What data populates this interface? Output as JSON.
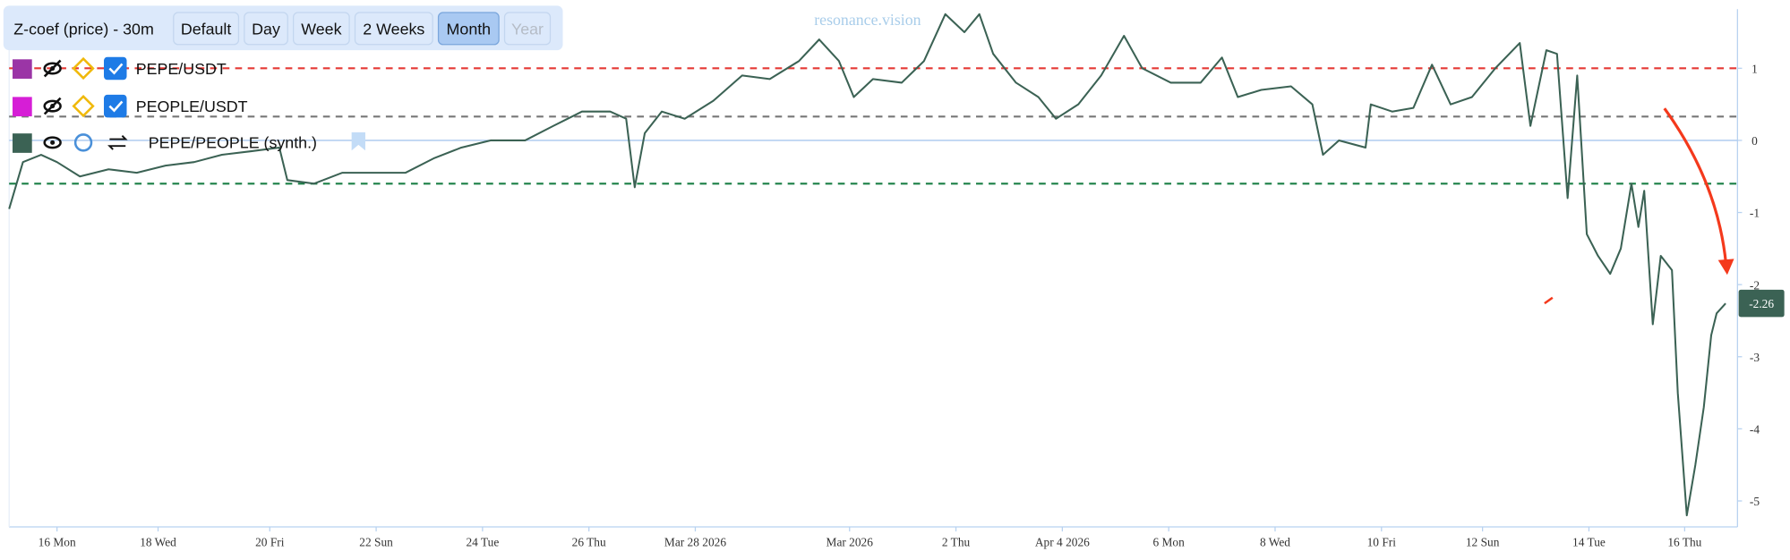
{
  "toolbar": {
    "title": "Z-coef (price) - 30m",
    "buttons": [
      "Default",
      "Day",
      "Week",
      "2 Weeks",
      "Month",
      "Year"
    ],
    "active_button": 4,
    "disabled_button": 5
  },
  "legend_extra": [
    {
      "name": "PEPE/USDT",
      "color": "#9b35a6"
    },
    {
      "name": "PEOPLE/USDT",
      "color": "#d61ed6"
    }
  ],
  "chart_data": {
    "type": "line",
    "watermark": "resonance.vision",
    "x": [
      -0.9,
      -0.64,
      -0.3,
      0,
      0.43,
      0.97,
      1.5,
      2.04,
      2.58,
      3.1,
      3.65,
      4.18,
      4.33,
      4.83,
      5.36,
      6,
      6.55,
      7.08,
      7.6,
      8.15,
      8.8,
      9.33,
      9.87,
      10.4,
      10.7,
      10.86,
      11.05,
      11.37,
      11.8,
      12.34,
      12.88,
      13.4,
      13.95,
      14.33,
      14.7,
      14.98,
      15.34,
      15.88,
      16.3,
      16.7,
      17.06,
      17.34,
      17.6,
      18.03,
      18.45,
      18.78,
      19.2,
      19.63,
      20.06,
      20.4,
      20.94,
      21.5,
      21.9,
      22.2,
      22.64,
      23.2,
      23.6,
      23.8,
      24.1,
      24.6,
      24.7,
      25.1,
      25.5,
      25.85,
      26.2,
      26.6,
      27.04,
      27.5,
      27.7,
      28.0,
      28.2,
      28.4,
      28.58,
      28.76,
      28.97,
      29.2,
      29.4,
      29.6,
      29.73,
      29.84,
      30.0,
      30.15,
      30.36,
      30.47,
      30.64,
      30.8,
      30.96,
      31.1,
      31.2,
      31.37
    ],
    "series": [
      {
        "name": "PEPE/PEOPLE (synth.)",
        "color": "#3b6254",
        "values": [
          -0.95,
          -0.3,
          -0.2,
          -0.3,
          -0.5,
          -0.4,
          -0.45,
          -0.35,
          -0.3,
          -0.2,
          -0.15,
          -0.1,
          -0.55,
          -0.6,
          -0.45,
          -0.45,
          -0.45,
          -0.25,
          -0.1,
          0,
          0,
          0.2,
          0.4,
          0.4,
          0.3,
          -0.65,
          0.1,
          0.4,
          0.3,
          0.55,
          0.9,
          0.85,
          1.1,
          1.4,
          1.1,
          0.6,
          0.85,
          0.8,
          1.1,
          1.75,
          1.5,
          1.75,
          1.2,
          0.8,
          0.6,
          0.3,
          0.5,
          0.9,
          1.45,
          1.0,
          0.8,
          0.8,
          1.15,
          0.6,
          0.7,
          0.75,
          0.5,
          -0.2,
          0.0,
          -0.1,
          0.5,
          0.4,
          0.45,
          1.05,
          0.5,
          0.6,
          1.0,
          1.35,
          0.2,
          1.25,
          1.2,
          -0.8,
          0.9,
          -1.3,
          -1.6,
          -1.85,
          -1.5,
          -0.6,
          -1.2,
          -0.7,
          -2.55,
          -1.6,
          -1.8,
          -3.5,
          -5.2,
          -4.5,
          -3.7,
          -2.7,
          -2.4,
          -2.26
        ]
      }
    ],
    "xlim": [
      -0.9,
      31.55
    ],
    "ylim": [
      -5.36,
      1.82
    ],
    "xticks": [
      {
        "value": 0,
        "label": "16 Mon"
      },
      {
        "value": 1.9,
        "label": "18 Wed"
      },
      {
        "value": 4,
        "label": "20 Fri"
      },
      {
        "value": 6,
        "label": "22 Sun"
      },
      {
        "value": 8,
        "label": "24 Tue"
      },
      {
        "value": 10,
        "label": "26 Thu"
      },
      {
        "value": 12,
        "label": "Mar 28 2026"
      },
      {
        "value": 14.9,
        "label": "Mar 2026"
      },
      {
        "value": 16.9,
        "label": "2 Thu"
      },
      {
        "value": 18.9,
        "label": "Apr 4 2026"
      },
      {
        "value": 20.9,
        "label": "6 Mon"
      },
      {
        "value": 22.9,
        "label": "8 Wed"
      },
      {
        "value": 24.9,
        "label": "10 Fri"
      },
      {
        "value": 26.8,
        "label": "12 Sun"
      },
      {
        "value": 28.8,
        "label": "14 Tue"
      },
      {
        "value": 30.6,
        "label": "16 Thu"
      }
    ],
    "yticks": [
      1,
      0,
      -1,
      -2,
      -3,
      -4,
      -5
    ],
    "reference_lines": [
      {
        "value": 1,
        "color": "#e53935",
        "dashed": true
      },
      {
        "value": 0.33,
        "color": "#777777",
        "dashed": true
      },
      {
        "value": -0.6,
        "color": "#1a7f45",
        "dashed": true
      },
      {
        "value": 0,
        "color": "#a9c7ee",
        "dashed": false
      }
    ]
  }
}
